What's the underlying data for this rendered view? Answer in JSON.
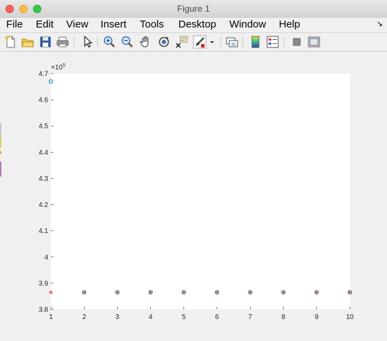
{
  "window": {
    "title": "Figure 1"
  },
  "menubar": {
    "items": [
      "File",
      "Edit",
      "View",
      "Insert",
      "Tools",
      "Desktop",
      "Window",
      "Help"
    ],
    "overflow_icon": "dock-arrow-icon"
  },
  "toolbar": {
    "buttons": [
      {
        "name": "new-figure-icon"
      },
      {
        "name": "open-file-icon"
      },
      {
        "name": "save-icon"
      },
      {
        "name": "print-icon"
      },
      {
        "name": "pointer-icon"
      },
      {
        "name": "zoom-in-icon"
      },
      {
        "name": "zoom-out-icon"
      },
      {
        "name": "pan-icon"
      },
      {
        "name": "rotate-3d-icon"
      },
      {
        "name": "data-cursor-icon"
      },
      {
        "name": "brush-icon"
      },
      {
        "name": "brush-dropdown-icon"
      },
      {
        "name": "link-plot-icon"
      },
      {
        "name": "colorbar-icon"
      },
      {
        "name": "legend-icon"
      },
      {
        "name": "hide-plot-tools-icon"
      },
      {
        "name": "show-plot-tools-icon"
      }
    ]
  },
  "chart_data": {
    "type": "scatter",
    "title": "",
    "xlabel": "",
    "ylabel": "",
    "exponent_label": "×10",
    "exponent_power": "5",
    "xlim": [
      1,
      10
    ],
    "ylim": [
      3.8,
      4.7
    ],
    "y_scale_note": "y values in units of 10^5",
    "xticks": [
      1,
      2,
      3,
      4,
      5,
      6,
      7,
      8,
      9,
      10
    ],
    "yticks": [
      3.8,
      3.9,
      4,
      4.1,
      4.2,
      4.3,
      4.4,
      4.5,
      4.6,
      4.7
    ],
    "ytick_labels": [
      "3.8",
      "3.9",
      "4",
      "4.1",
      "4.2",
      "4.3",
      "4.4",
      "4.5",
      "4.6",
      "4.7"
    ],
    "grid": false,
    "series": [
      {
        "marker": "circle",
        "color": "#0072bd",
        "x": [
          1,
          2,
          3,
          4,
          5,
          6,
          7,
          8,
          9,
          10
        ],
        "y": [
          4.67,
          3.865,
          3.865,
          3.865,
          3.865,
          3.865,
          3.865,
          3.865,
          3.865,
          3.865
        ]
      },
      {
        "marker": "asterisk",
        "color": "#d95319",
        "x": [
          1,
          2,
          3,
          4,
          5,
          6,
          7,
          8,
          9,
          10
        ],
        "y": [
          3.865,
          3.865,
          3.865,
          3.865,
          3.865,
          3.865,
          3.865,
          3.865,
          3.865,
          3.865
        ]
      }
    ]
  },
  "colors": {
    "axes_bg": "#ffffff",
    "figure_bg": "#f0f0f0",
    "tick_text": "#262626"
  }
}
